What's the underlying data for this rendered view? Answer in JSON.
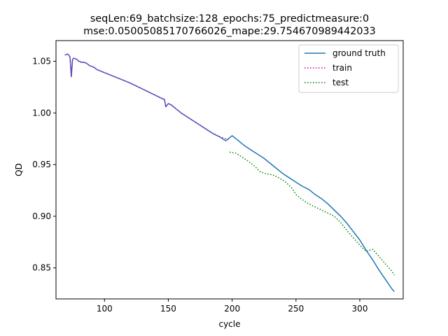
{
  "chart_data": {
    "type": "line",
    "title_lines": [
      "seqLen:69_batchsize:128_epochs:75_predictmeasure:0",
      "mse:0.05005085170766026_mape:29.754670989442033"
    ],
    "xlabel": "cycle",
    "ylabel": "QD",
    "xlim": [
      62,
      334
    ],
    "ylim": [
      0.82,
      1.07
    ],
    "xticks": [
      100,
      150,
      200,
      250,
      300
    ],
    "yticks": [
      0.85,
      0.9,
      0.95,
      1.0,
      1.05
    ],
    "ytick_labels": [
      "0.85",
      "0.90",
      "0.95",
      "1.00",
      "1.05"
    ],
    "grid": false,
    "legend_position": "upper right",
    "series": [
      {
        "name": "ground truth",
        "color": "#1f77b4",
        "style": "solid",
        "x": [
          69,
          71,
          72,
          73,
          74,
          75,
          76,
          78,
          80,
          82,
          84,
          86,
          88,
          90,
          92,
          94,
          96,
          98,
          100,
          102,
          104,
          106,
          108,
          110,
          112,
          114,
          116,
          118,
          120,
          125,
          130,
          135,
          140,
          145,
          147,
          148,
          150,
          152,
          155,
          160,
          165,
          170,
          175,
          180,
          185,
          190,
          195,
          200,
          205,
          210,
          215,
          220,
          225,
          230,
          235,
          240,
          245,
          250,
          255,
          260,
          265,
          270,
          275,
          280,
          285,
          290,
          295,
          300,
          305,
          310,
          315,
          320,
          325,
          327
        ],
        "y": [
          1.056,
          1.057,
          1.056,
          1.054,
          1.035,
          1.052,
          1.053,
          1.052,
          1.05,
          1.049,
          1.049,
          1.048,
          1.046,
          1.045,
          1.044,
          1.042,
          1.041,
          1.04,
          1.039,
          1.038,
          1.037,
          1.036,
          1.035,
          1.034,
          1.033,
          1.032,
          1.031,
          1.03,
          1.029,
          1.026,
          1.023,
          1.02,
          1.017,
          1.014,
          1.013,
          1.006,
          1.009,
          1.008,
          1.005,
          1.0,
          0.996,
          0.992,
          0.988,
          0.984,
          0.98,
          0.977,
          0.973,
          0.978,
          0.973,
          0.968,
          0.964,
          0.96,
          0.956,
          0.951,
          0.946,
          0.941,
          0.937,
          0.933,
          0.929,
          0.926,
          0.921,
          0.917,
          0.912,
          0.906,
          0.9,
          0.893,
          0.885,
          0.877,
          0.867,
          0.858,
          0.848,
          0.839,
          0.83,
          0.827
        ]
      },
      {
        "name": "train",
        "color": "#bf00bf",
        "style": "dotted",
        "x": [
          69,
          71,
          72,
          73,
          74,
          75,
          76,
          78,
          80,
          82,
          84,
          86,
          88,
          90,
          92,
          94,
          96,
          98,
          100,
          102,
          104,
          106,
          108,
          110,
          112,
          114,
          116,
          118,
          120,
          125,
          130,
          135,
          140,
          145,
          147,
          148,
          150,
          152,
          155,
          160,
          165,
          170,
          175,
          180,
          185,
          190,
          195,
          198
        ],
        "y": [
          1.056,
          1.057,
          1.056,
          1.054,
          1.035,
          1.052,
          1.053,
          1.052,
          1.05,
          1.049,
          1.049,
          1.048,
          1.046,
          1.045,
          1.044,
          1.042,
          1.041,
          1.04,
          1.039,
          1.038,
          1.037,
          1.036,
          1.035,
          1.034,
          1.033,
          1.032,
          1.031,
          1.03,
          1.029,
          1.026,
          1.023,
          1.02,
          1.017,
          1.014,
          1.013,
          1.006,
          1.009,
          1.008,
          1.005,
          1.0,
          0.996,
          0.992,
          0.988,
          0.984,
          0.98,
          0.977,
          0.975,
          0.974
        ]
      },
      {
        "name": "test",
        "color": "#007f00",
        "style": "dotted",
        "x": [
          198,
          203,
          208,
          213,
          218,
          222,
          227,
          232,
          237,
          242,
          247,
          250,
          255,
          260,
          265,
          270,
          275,
          280,
          285,
          290,
          295,
          300,
          305,
          310,
          315,
          320,
          325,
          327
        ],
        "y": [
          0.962,
          0.961,
          0.957,
          0.953,
          0.948,
          0.943,
          0.941,
          0.94,
          0.937,
          0.933,
          0.927,
          0.921,
          0.916,
          0.912,
          0.909,
          0.906,
          0.903,
          0.9,
          0.894,
          0.886,
          0.879,
          0.872,
          0.866,
          0.868,
          0.861,
          0.854,
          0.847,
          0.843
        ]
      }
    ]
  }
}
